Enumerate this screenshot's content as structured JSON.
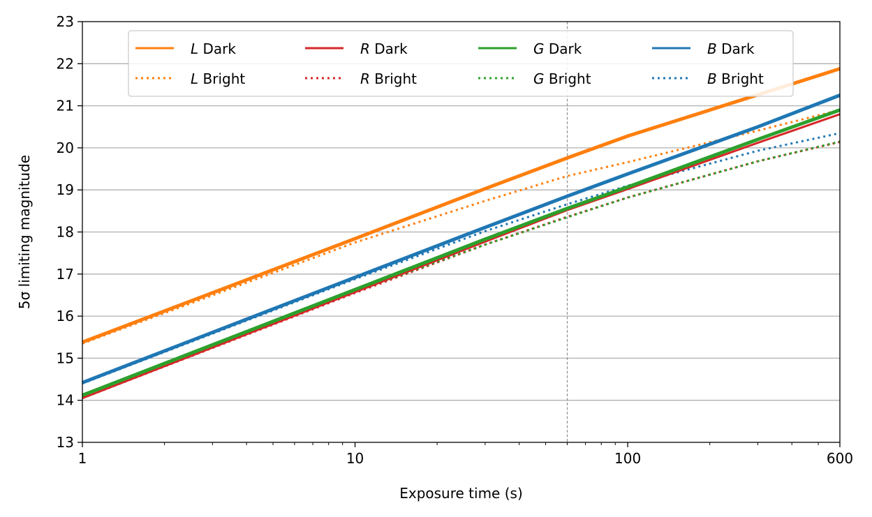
{
  "chart_data": {
    "type": "line",
    "xlabel": "Exposure time (s)",
    "ylabel": "5σ limiting magnitude",
    "xscale": "log",
    "xlim": [
      1,
      600
    ],
    "ylim": [
      13,
      23
    ],
    "xticks": [
      1,
      10,
      100,
      600
    ],
    "xtick_labels": [
      "1",
      "10",
      "100",
      "600"
    ],
    "yticks": [
      13,
      14,
      15,
      16,
      17,
      18,
      19,
      20,
      21,
      22,
      23
    ],
    "ytick_labels": [
      "13",
      "14",
      "15",
      "16",
      "17",
      "18",
      "19",
      "20",
      "21",
      "22",
      "23"
    ],
    "grid": "horizontal",
    "legend_position": "top",
    "legend_columns": 4,
    "vertical_reference_line": {
      "x": 60,
      "style": "dashed",
      "color": "#808080"
    },
    "series": [
      {
        "band": "L",
        "name": " Dark",
        "style": "solid",
        "color": "#ff7f0e",
        "x": [
          1,
          10,
          30,
          60,
          100,
          300,
          600
        ],
        "y": [
          15.38,
          17.84,
          19.03,
          19.76,
          20.28,
          21.26,
          21.88
        ]
      },
      {
        "band": "L",
        "name": " Bright",
        "style": "dotted",
        "color": "#ff7f0e",
        "x": [
          1,
          10,
          30,
          60,
          100,
          300,
          600
        ],
        "y": [
          15.35,
          17.75,
          18.74,
          19.33,
          19.66,
          20.41,
          20.9
        ]
      },
      {
        "band": "R",
        "name": " Dark",
        "style": "solid",
        "color": "#d62728",
        "x": [
          1,
          10,
          30,
          60,
          100,
          300,
          600
        ],
        "y": [
          14.05,
          16.57,
          17.77,
          18.52,
          19.02,
          20.12,
          20.8
        ]
      },
      {
        "band": "R",
        "name": " Bright",
        "style": "dotted",
        "color": "#d62728",
        "x": [
          1,
          10,
          30,
          60,
          100,
          300,
          600
        ],
        "y": [
          14.05,
          16.55,
          17.7,
          18.36,
          18.82,
          19.68,
          20.14
        ]
      },
      {
        "band": "G",
        "name": " Dark",
        "style": "solid",
        "color": "#2ca02c",
        "x": [
          1,
          10,
          30,
          60,
          100,
          300,
          600
        ],
        "y": [
          14.12,
          16.63,
          17.83,
          18.56,
          19.07,
          20.2,
          20.9
        ]
      },
      {
        "band": "G",
        "name": " Bright",
        "style": "dotted",
        "color": "#2ca02c",
        "x": [
          1,
          10,
          30,
          60,
          100,
          300,
          600
        ],
        "y": [
          14.1,
          16.58,
          17.7,
          18.35,
          18.82,
          19.68,
          20.15
        ]
      },
      {
        "band": "B",
        "name": " Dark",
        "style": "solid",
        "color": "#1f77b4",
        "x": [
          1,
          10,
          30,
          60,
          100,
          300,
          600
        ],
        "y": [
          14.42,
          16.92,
          18.11,
          18.85,
          19.38,
          20.5,
          21.25
        ]
      },
      {
        "band": "B",
        "name": " Bright",
        "style": "dotted",
        "color": "#1f77b4",
        "x": [
          1,
          10,
          30,
          60,
          100,
          300,
          600
        ],
        "y": [
          14.4,
          16.88,
          18.02,
          18.66,
          19.1,
          19.93,
          20.35
        ]
      }
    ]
  }
}
